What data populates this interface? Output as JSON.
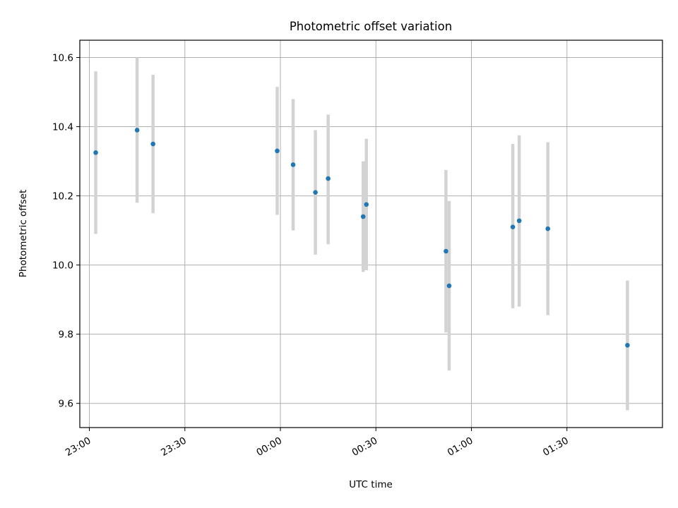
{
  "chart_data": {
    "type": "scatter",
    "title": "Photometric offset variation",
    "xlabel": "UTC time",
    "ylabel": "Photometric offset",
    "grid": true,
    "xlim": [
      "22:57",
      "02:00"
    ],
    "ylim": [
      9.53,
      10.65
    ],
    "x_ticks": [
      "23:00",
      "23:30",
      "00:00",
      "00:30",
      "01:00",
      "01:30"
    ],
    "y_ticks": [
      "9.6",
      "9.8",
      "10.0",
      "10.2",
      "10.4",
      "10.6"
    ],
    "series": [
      {
        "marker_color": "#1f77b4",
        "errorbar_color": "#d3d3d3",
        "points": [
          {
            "x": "23:02",
            "y": 10.325,
            "err_low": 10.09,
            "err_high": 10.56
          },
          {
            "x": "23:15",
            "y": 10.39,
            "err_low": 10.18,
            "err_high": 10.6
          },
          {
            "x": "23:20",
            "y": 10.35,
            "err_low": 10.15,
            "err_high": 10.55
          },
          {
            "x": "23:59",
            "y": 10.33,
            "err_low": 10.145,
            "err_high": 10.515
          },
          {
            "x": "00:04",
            "y": 10.29,
            "err_low": 10.1,
            "err_high": 10.48
          },
          {
            "x": "00:11",
            "y": 10.21,
            "err_low": 10.03,
            "err_high": 10.39
          },
          {
            "x": "00:15",
            "y": 10.25,
            "err_low": 10.06,
            "err_high": 10.435
          },
          {
            "x": "00:26",
            "y": 10.14,
            "err_low": 9.98,
            "err_high": 10.3
          },
          {
            "x": "00:27",
            "y": 10.175,
            "err_low": 9.985,
            "err_high": 10.365
          },
          {
            "x": "00:52",
            "y": 10.04,
            "err_low": 9.805,
            "err_high": 10.275
          },
          {
            "x": "00:53",
            "y": 9.94,
            "err_low": 9.695,
            "err_high": 10.185
          },
          {
            "x": "01:13",
            "y": 10.11,
            "err_low": 9.875,
            "err_high": 10.35
          },
          {
            "x": "01:15",
            "y": 10.128,
            "err_low": 9.88,
            "err_high": 10.375
          },
          {
            "x": "01:24",
            "y": 10.105,
            "err_low": 9.855,
            "err_high": 10.355
          },
          {
            "x": "01:49",
            "y": 9.768,
            "err_low": 9.58,
            "err_high": 9.955
          }
        ]
      }
    ]
  }
}
